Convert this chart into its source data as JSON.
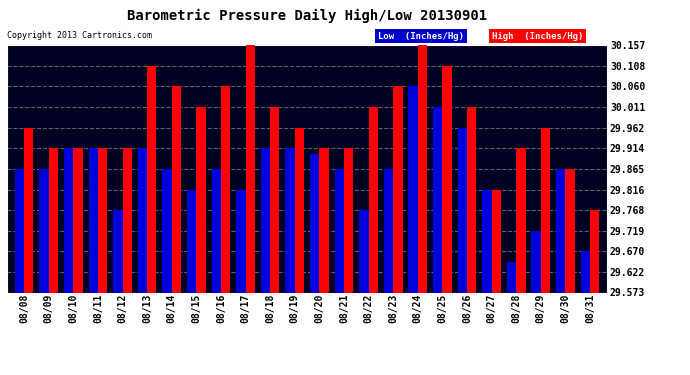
{
  "title": "Barometric Pressure Daily High/Low 20130901",
  "copyright": "Copyright 2013 Cartronics.com",
  "dates": [
    "08/08",
    "08/09",
    "08/10",
    "08/11",
    "08/12",
    "08/13",
    "08/14",
    "08/15",
    "08/16",
    "08/17",
    "08/18",
    "08/19",
    "08/20",
    "08/21",
    "08/22",
    "08/23",
    "08/24",
    "08/25",
    "08/26",
    "08/27",
    "08/28",
    "08/29",
    "08/30",
    "08/31"
  ],
  "low": [
    29.865,
    29.865,
    29.914,
    29.914,
    29.768,
    29.914,
    29.865,
    29.816,
    29.865,
    29.816,
    29.914,
    29.914,
    29.9,
    29.865,
    29.768,
    29.865,
    30.06,
    30.011,
    29.962,
    29.816,
    29.646,
    29.719,
    29.865,
    29.67
  ],
  "high": [
    29.962,
    29.914,
    29.914,
    29.914,
    29.914,
    30.108,
    30.06,
    30.011,
    30.06,
    30.157,
    30.011,
    29.962,
    29.914,
    29.914,
    30.011,
    30.06,
    30.157,
    30.108,
    30.011,
    29.816,
    29.914,
    29.962,
    29.865,
    29.768
  ],
  "low_color": "#0000dd",
  "high_color": "#ff0000",
  "bg_color": "#ffffff",
  "plot_bg_color": "#000022",
  "grid_color": "#888888",
  "text_color": "#000000",
  "axis_text_color": "#ffffff",
  "ymin": 29.573,
  "ymax": 30.157,
  "yticks": [
    29.573,
    29.622,
    29.67,
    29.719,
    29.768,
    29.816,
    29.865,
    29.914,
    29.962,
    30.011,
    30.06,
    30.108,
    30.157
  ],
  "title_fontsize": 10,
  "legend_low_bg": "#0000cc",
  "legend_high_bg": "#ff0000",
  "legend_text_color": "#ffffff"
}
